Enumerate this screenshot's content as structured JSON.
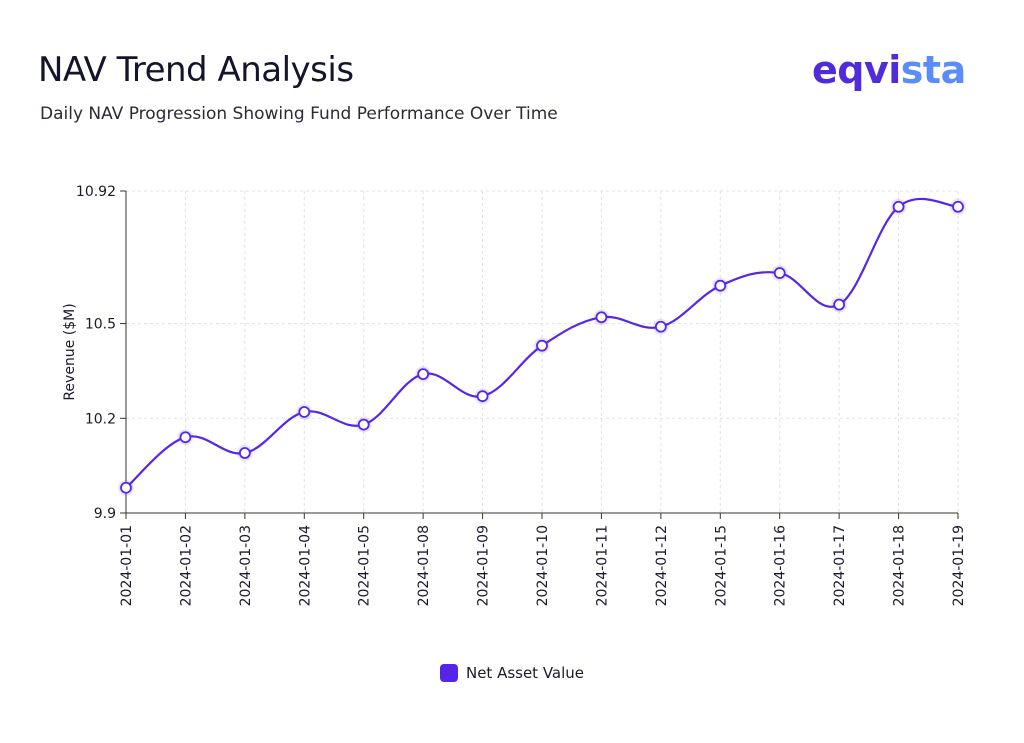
{
  "header": {
    "title": "NAV Trend Analysis",
    "subtitle": "Daily NAV Progression Showing Fund Performance Over Time"
  },
  "logo": {
    "part1": "eqvi",
    "part2": "sta",
    "color1": "#4f2bd9",
    "color2": "#5b8cf7"
  },
  "chart_data": {
    "type": "line",
    "title": "",
    "xlabel": "",
    "ylabel": "Revenue ($M)",
    "ylim": [
      9.9,
      10.92
    ],
    "yticks": [
      "9.9",
      "10.2",
      "10.5",
      "10.92"
    ],
    "ytick_values": [
      9.9,
      10.2,
      10.5,
      10.92
    ],
    "grid": true,
    "legend_position": "bottom-center",
    "categories": [
      "2024-01-01",
      "2024-01-02",
      "2024-01-03",
      "2024-01-04",
      "2024-01-05",
      "2024-01-08",
      "2024-01-09",
      "2024-01-10",
      "2024-01-11",
      "2024-01-12",
      "2024-01-15",
      "2024-01-16",
      "2024-01-17",
      "2024-01-18",
      "2024-01-19"
    ],
    "series": [
      {
        "name": "Net Asset Value",
        "color": "#5526e8",
        "values": [
          9.98,
          10.14,
          10.09,
          10.22,
          10.18,
          10.34,
          10.27,
          10.43,
          10.52,
          10.49,
          10.62,
          10.66,
          10.56,
          10.87,
          10.87
        ]
      }
    ]
  }
}
